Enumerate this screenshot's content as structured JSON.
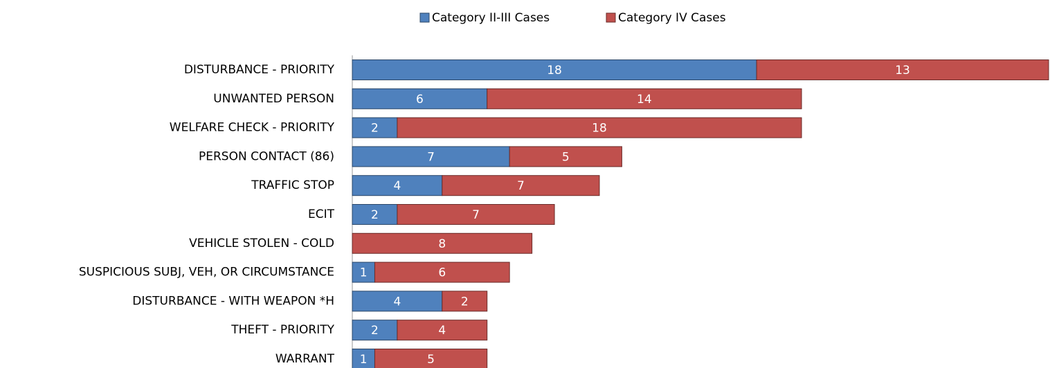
{
  "chart_data": {
    "type": "stacked-barh",
    "categories": [
      "DISTURBANCE - PRIORITY",
      "UNWANTED PERSON",
      "WELFARE CHECK - PRIORITY",
      "PERSON CONTACT (86)",
      "TRAFFIC STOP",
      "ECIT",
      "VEHICLE STOLEN - COLD",
      "SUSPICIOUS SUBJ, VEH, OR CIRCUMSTANCE",
      "DISTURBANCE - WITH WEAPON *H",
      "THEFT - PRIORITY",
      "WARRANT"
    ],
    "series": [
      {
        "name": "Category II-III Cases",
        "color": "#4f81bd",
        "values": [
          18,
          6,
          2,
          7,
          4,
          2,
          0,
          1,
          4,
          2,
          1
        ]
      },
      {
        "name": "Category IV Cases",
        "color": "#c0504d",
        "values": [
          13,
          14,
          18,
          5,
          7,
          7,
          8,
          6,
          2,
          4,
          5
        ]
      }
    ],
    "xlim": [
      0,
      31
    ],
    "legend": "top"
  }
}
